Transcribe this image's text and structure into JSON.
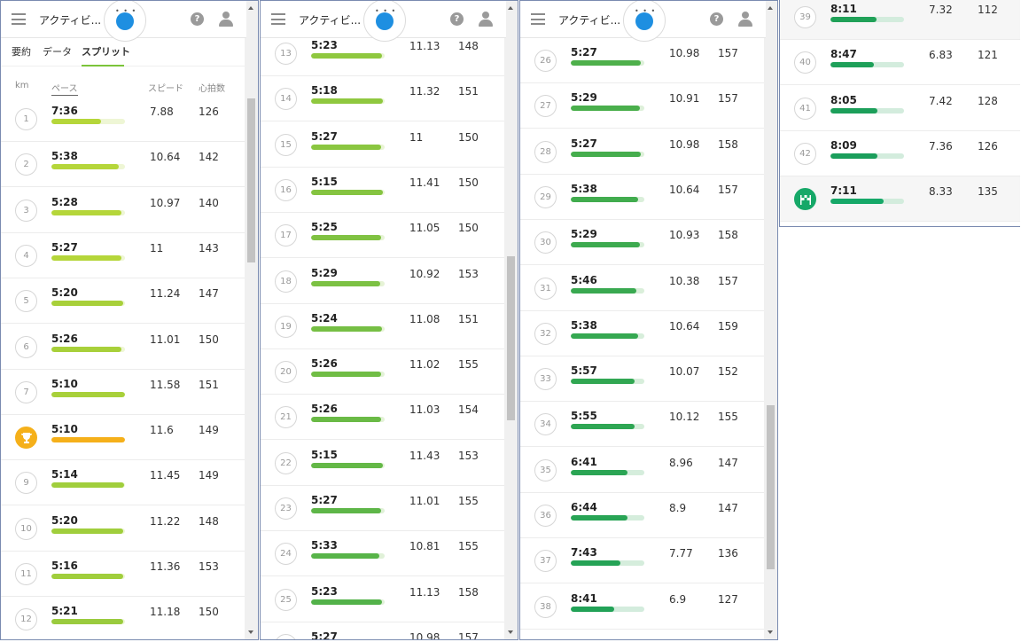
{
  "app": {
    "title": "アクティビ..."
  },
  "tabs": [
    {
      "label": "要約"
    },
    {
      "label": "データ"
    },
    {
      "label": "スプリット"
    }
  ],
  "columns": {
    "km": "km",
    "pace": "ペース",
    "speed": "スピード",
    "hr": "心拍数"
  },
  "colors": {
    "bar_green": "#93c83e",
    "bar_dark_green": "#27ae60",
    "trophy": "#f5b01a",
    "finish": "#16a868",
    "bar_track": "#d7eed8"
  },
  "icons": {
    "menu": "menu-icon",
    "help": "help-icon",
    "user": "user-icon",
    "trophy": "trophy-icon",
    "finish": "finish-flag-icon"
  },
  "splits": [
    {
      "km": "1",
      "pace": "7:36",
      "speed": "7.88",
      "hr": "126",
      "bar_fraction": 0.68,
      "color": "#b5d63a",
      "track": "#eef6d5"
    },
    {
      "km": "2",
      "pace": "5:38",
      "speed": "10.64",
      "hr": "142",
      "bar_fraction": 0.92,
      "color": "#b5d63a",
      "track": "#eef6d5"
    },
    {
      "km": "3",
      "pace": "5:28",
      "speed": "10.97",
      "hr": "140",
      "bar_fraction": 0.95,
      "color": "#b5d63a",
      "track": "#eef6d5"
    },
    {
      "km": "4",
      "pace": "5:27",
      "speed": "11",
      "hr": "143",
      "bar_fraction": 0.95,
      "color": "#b5d63a",
      "track": "#eef6d5"
    },
    {
      "km": "5",
      "pace": "5:20",
      "speed": "11.24",
      "hr": "147",
      "bar_fraction": 0.97,
      "color": "#a8d03a",
      "track": "#eef6d5"
    },
    {
      "km": "6",
      "pace": "5:26",
      "speed": "11.01",
      "hr": "150",
      "bar_fraction": 0.95,
      "color": "#a8d03a",
      "track": "#eef6d5"
    },
    {
      "km": "7",
      "pace": "5:10",
      "speed": "11.58",
      "hr": "151",
      "bar_fraction": 1.0,
      "color": "#a8d03a",
      "track": "#eef6d5"
    },
    {
      "km": "",
      "pace": "5:10",
      "speed": "11.6",
      "hr": "149",
      "bar_fraction": 1.0,
      "color": "#f5b01a",
      "track": "#fdefc8",
      "trophy": true
    },
    {
      "km": "9",
      "pace": "5:14",
      "speed": "11.45",
      "hr": "149",
      "bar_fraction": 0.99,
      "color": "#a0ce3c",
      "track": "#eef6d5"
    },
    {
      "km": "10",
      "pace": "5:20",
      "speed": "11.22",
      "hr": "148",
      "bar_fraction": 0.97,
      "color": "#a0ce3c",
      "track": "#eef6d5"
    },
    {
      "km": "11",
      "pace": "5:16",
      "speed": "11.36",
      "hr": "153",
      "bar_fraction": 0.98,
      "color": "#a0ce3c",
      "track": "#eef6d5"
    },
    {
      "km": "12",
      "pace": "5:21",
      "speed": "11.18",
      "hr": "150",
      "bar_fraction": 0.97,
      "color": "#9acb3e",
      "track": "#eef6d5"
    },
    {
      "km": "13",
      "pace": "5:23",
      "speed": "11.13",
      "hr": "148",
      "bar_fraction": 0.96,
      "color": "#8fc83f",
      "track": "#e9f4d5"
    },
    {
      "km": "14",
      "pace": "5:18",
      "speed": "11.32",
      "hr": "151",
      "bar_fraction": 0.98,
      "color": "#8fc83f",
      "track": "#e9f4d5"
    },
    {
      "km": "15",
      "pace": "5:27",
      "speed": "11",
      "hr": "150",
      "bar_fraction": 0.95,
      "color": "#8ac640",
      "track": "#e9f4d5"
    },
    {
      "km": "16",
      "pace": "5:15",
      "speed": "11.41",
      "hr": "150",
      "bar_fraction": 0.98,
      "color": "#85c441",
      "track": "#e9f4d5"
    },
    {
      "km": "17",
      "pace": "5:25",
      "speed": "11.05",
      "hr": "150",
      "bar_fraction": 0.95,
      "color": "#80c242",
      "track": "#e6f3d6"
    },
    {
      "km": "18",
      "pace": "5:29",
      "speed": "10.92",
      "hr": "153",
      "bar_fraction": 0.94,
      "color": "#7cc143",
      "track": "#e6f3d6"
    },
    {
      "km": "19",
      "pace": "5:24",
      "speed": "11.08",
      "hr": "151",
      "bar_fraction": 0.96,
      "color": "#76bf44",
      "track": "#e6f3d6"
    },
    {
      "km": "20",
      "pace": "5:26",
      "speed": "11.02",
      "hr": "155",
      "bar_fraction": 0.95,
      "color": "#70bd45",
      "track": "#e3f2d7"
    },
    {
      "km": "21",
      "pace": "5:26",
      "speed": "11.03",
      "hr": "154",
      "bar_fraction": 0.95,
      "color": "#6aba46",
      "track": "#e3f2d7"
    },
    {
      "km": "22",
      "pace": "5:15",
      "speed": "11.43",
      "hr": "153",
      "bar_fraction": 0.98,
      "color": "#64b847",
      "track": "#e3f2d7"
    },
    {
      "km": "23",
      "pace": "5:27",
      "speed": "11.01",
      "hr": "155",
      "bar_fraction": 0.95,
      "color": "#5eb648",
      "track": "#e0f1d8"
    },
    {
      "km": "24",
      "pace": "5:33",
      "speed": "10.81",
      "hr": "155",
      "bar_fraction": 0.93,
      "color": "#58b449",
      "track": "#e0f1d8"
    },
    {
      "km": "25",
      "pace": "5:23",
      "speed": "11.13",
      "hr": "158",
      "bar_fraction": 0.96,
      "color": "#53b24a",
      "track": "#e0f1d8"
    },
    {
      "km": "26",
      "pace": "5:27",
      "speed": "10.98",
      "hr": "157",
      "bar_fraction": 0.95,
      "color": "#4eb04b",
      "track": "#ddf0d9"
    },
    {
      "km": "27",
      "pace": "5:29",
      "speed": "10.91",
      "hr": "157",
      "bar_fraction": 0.94,
      "color": "#4aaf4c",
      "track": "#ddf0d9"
    },
    {
      "km": "28",
      "pace": "5:27",
      "speed": "10.98",
      "hr": "158",
      "bar_fraction": 0.95,
      "color": "#45ad4d",
      "track": "#ddf0d9"
    },
    {
      "km": "29",
      "pace": "5:38",
      "speed": "10.64",
      "hr": "157",
      "bar_fraction": 0.92,
      "color": "#41ac4e",
      "track": "#daefda"
    },
    {
      "km": "30",
      "pace": "5:29",
      "speed": "10.93",
      "hr": "158",
      "bar_fraction": 0.94,
      "color": "#3daa4f",
      "track": "#daefda"
    },
    {
      "km": "31",
      "pace": "5:46",
      "speed": "10.38",
      "hr": "157",
      "bar_fraction": 0.89,
      "color": "#39a950",
      "track": "#daefda"
    },
    {
      "km": "32",
      "pace": "5:38",
      "speed": "10.64",
      "hr": "159",
      "bar_fraction": 0.92,
      "color": "#35a851",
      "track": "#d7eedb"
    },
    {
      "km": "33",
      "pace": "5:57",
      "speed": "10.07",
      "hr": "152",
      "bar_fraction": 0.87,
      "color": "#31a752",
      "track": "#d7eedb"
    },
    {
      "km": "34",
      "pace": "5:55",
      "speed": "10.12",
      "hr": "155",
      "bar_fraction": 0.87,
      "color": "#2ea653",
      "track": "#d7eedb"
    },
    {
      "km": "35",
      "pace": "6:41",
      "speed": "8.96",
      "hr": "147",
      "bar_fraction": 0.77,
      "color": "#2ba554",
      "track": "#d5eddc"
    },
    {
      "km": "36",
      "pace": "6:44",
      "speed": "8.9",
      "hr": "147",
      "bar_fraction": 0.77,
      "color": "#28a455",
      "track": "#d5eddc"
    },
    {
      "km": "37",
      "pace": "7:43",
      "speed": "7.77",
      "hr": "136",
      "bar_fraction": 0.67,
      "color": "#25a356",
      "track": "#d5eddc"
    },
    {
      "km": "38",
      "pace": "8:41",
      "speed": "6.9",
      "hr": "127",
      "bar_fraction": 0.59,
      "color": "#22a257",
      "track": "#d3ecdd"
    },
    {
      "km": "39",
      "pace": "8:11",
      "speed": "7.32",
      "hr": "112",
      "bar_fraction": 0.63,
      "color": "#20a158",
      "track": "#d3ecdd"
    },
    {
      "km": "40",
      "pace": "8:47",
      "speed": "6.83",
      "hr": "121",
      "bar_fraction": 0.59,
      "color": "#1ea059",
      "track": "#d3ecdd"
    },
    {
      "km": "41",
      "pace": "8:05",
      "speed": "7.42",
      "hr": "128",
      "bar_fraction": 0.64,
      "color": "#1c9f5a",
      "track": "#d3ecdd"
    },
    {
      "km": "42",
      "pace": "8:09",
      "speed": "7.36",
      "hr": "126",
      "bar_fraction": 0.64,
      "color": "#1a9e5b",
      "track": "#d3ecdd"
    },
    {
      "km": "",
      "pace": "7:11",
      "speed": "8.33",
      "hr": "135",
      "bar_fraction": 0.72,
      "color": "#16a868",
      "track": "#d3ecdd",
      "finish": true
    }
  ]
}
